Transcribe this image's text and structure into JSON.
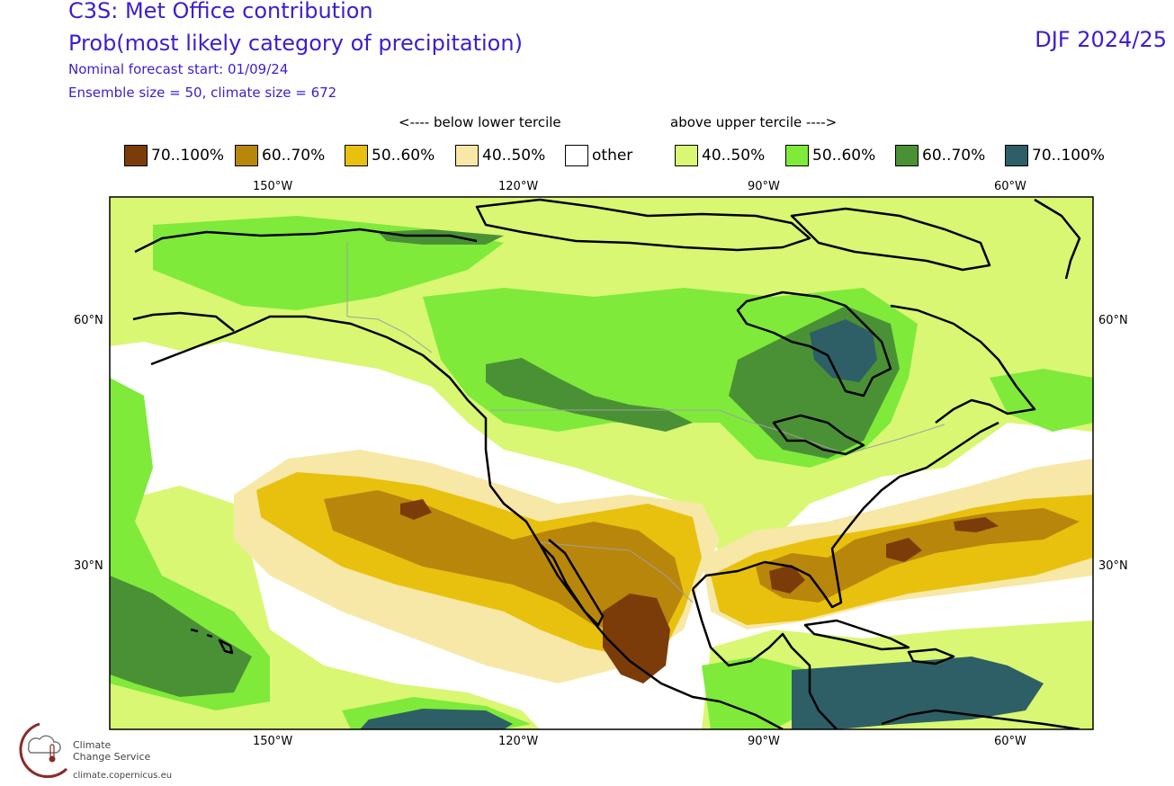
{
  "header": {
    "title": "C3S: Met Office contribution",
    "subtitle": "Prob(most likely category of precipitation)",
    "forecast_start": "Nominal forecast start: 01/09/24",
    "ensemble": "Ensemble size = 50, climate size = 672",
    "season": "DJF 2024/25"
  },
  "legend": {
    "below_label": "<---- below lower tercile",
    "above_label": "above upper tercile ---->",
    "items": [
      {
        "label": "70..100%",
        "color": "#7b3c0a"
      },
      {
        "label": "60..70%",
        "color": "#b8860b"
      },
      {
        "label": "50..60%",
        "color": "#e8c10e"
      },
      {
        "label": "40..50%",
        "color": "#f7e8a8"
      },
      {
        "label": "other",
        "color": "#ffffff"
      },
      {
        "label": "40..50%",
        "color": "#d9f773"
      },
      {
        "label": "50..60%",
        "color": "#7fea3a"
      },
      {
        "label": "60..70%",
        "color": "#4a9135"
      },
      {
        "label": "70..100%",
        "color": "#2e5f66"
      }
    ]
  },
  "axes": {
    "lon_ticks": [
      "150°W",
      "120°W",
      "90°W",
      "60°W"
    ],
    "lat_ticks": [
      "60°N",
      "30°N"
    ]
  },
  "logo": {
    "line1": "Climate",
    "line2": "Change Service",
    "url": "climate.copernicus.eu"
  }
}
